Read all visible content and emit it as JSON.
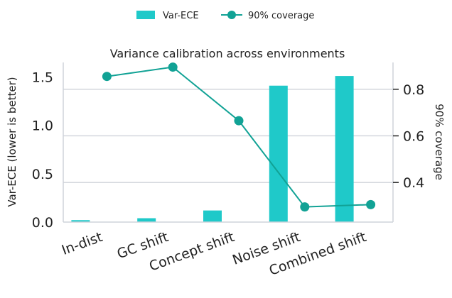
{
  "chart_data": {
    "type": "bar+line",
    "title": "Variance calibration across environments",
    "categories": [
      "In-dist",
      "GC shift",
      "Concept shift",
      "Noise shift",
      "Combined shift"
    ],
    "series": [
      {
        "name": "Var-ECE",
        "kind": "bar",
        "axis": "left",
        "values": [
          0.02,
          0.04,
          0.12,
          1.41,
          1.51
        ]
      },
      {
        "name": "90% coverage",
        "kind": "line",
        "axis": "right",
        "values": [
          0.855,
          0.895,
          0.665,
          0.295,
          0.305
        ]
      }
    ],
    "ylabel_left": "Var-ECE (lower is better)",
    "ylabel_right": "90% coverage",
    "ylim_left": [
      0,
      1.65
    ],
    "ylim_right": [
      0.23,
      0.915
    ],
    "yticks_left": [
      "0.0",
      "0.5",
      "1.0",
      "1.5"
    ],
    "yticks_left_values": [
      0,
      0.5,
      1.0,
      1.5
    ],
    "yticks_right": [
      "0.4",
      "0.6",
      "0.8"
    ],
    "yticks_right_values": [
      0.4,
      0.6,
      0.8
    ],
    "legend_position": "top-center",
    "grid": true,
    "colors": {
      "bar": "#1fc9c9",
      "line": "#11a295",
      "grid": "#cfd3da",
      "axis": "#222222"
    }
  }
}
